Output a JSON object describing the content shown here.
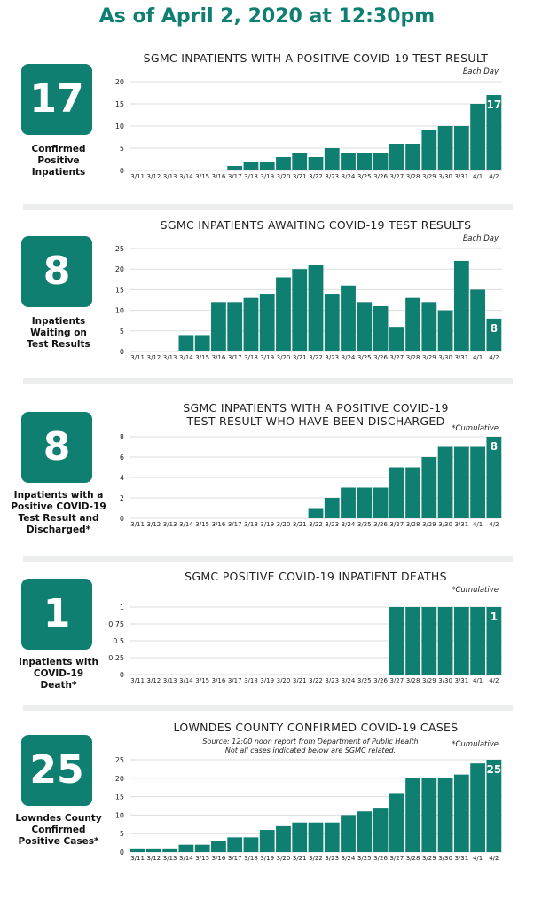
{
  "header": "As of April 2, 2020 at 12:30pm",
  "colors": {
    "accent": "#0f7f71",
    "header_text": "#0f7f71",
    "divider": "#eceeed",
    "grid": "#dddddd"
  },
  "panels": [
    {
      "stat": "17",
      "caption": [
        "Confirmed",
        "Positive",
        "Inpatients"
      ],
      "title": [
        "SGMC INPATIENTS WITH A POSITIVE COVID-19 TEST RESULT"
      ],
      "note": "Each Day",
      "source": []
    },
    {
      "stat": "8",
      "caption": [
        "Inpatients",
        "Waiting on",
        "Test Results"
      ],
      "title": [
        "SGMC INPATIENTS AWAITING COVID-19 TEST RESULTS"
      ],
      "note": "Each Day",
      "source": []
    },
    {
      "stat": "8",
      "caption": [
        "Inpatients with a",
        "Positive COVID-19",
        "Test Result and",
        "Discharged*"
      ],
      "title": [
        "SGMC INPATIENTS WITH A POSITIVE COVID-19",
        "TEST RESULT WHO HAVE BEEN DISCHARGED"
      ],
      "note": "*Cumulative",
      "source": []
    },
    {
      "stat": "1",
      "caption": [
        "Inpatients with",
        "COVID-19",
        "Death*"
      ],
      "title": [
        "SGMC POSITIVE COVID-19 INPATIENT DEATHS"
      ],
      "note": "*Cumulative",
      "source": []
    },
    {
      "stat": "25",
      "caption": [
        "Lowndes County",
        "Confirmed",
        "Positive Cases*"
      ],
      "title": [
        "LOWNDES COUNTY CONFIRMED COVID-19 CASES"
      ],
      "note": "*Cumulative",
      "source": [
        "Source: 12:00 noon report from Department of Public Health",
        "Not all cases indicated below are SGMC related."
      ]
    }
  ],
  "chart_data": [
    {
      "type": "bar",
      "title": "SGMC INPATIENTS WITH A POSITIVE COVID-19 TEST RESULT",
      "categories": [
        "3/11",
        "3/12",
        "3/13",
        "3/14",
        "3/15",
        "3/16",
        "3/17",
        "3/18",
        "3/19",
        "3/20",
        "3/21",
        "3/22",
        "3/23",
        "3/24",
        "3/25",
        "3/26",
        "3/27",
        "3/28",
        "3/29",
        "3/30",
        "3/31",
        "4/1",
        "4/2"
      ],
      "values": [
        0,
        0,
        0,
        0,
        0,
        0,
        1,
        2,
        2,
        3,
        4,
        3,
        5,
        4,
        4,
        4,
        6,
        6,
        9,
        10,
        10,
        15,
        17
      ],
      "yticks": [
        0,
        5,
        10,
        15,
        20
      ],
      "ylim": [
        0,
        20
      ],
      "bar_label": "17",
      "grid": true
    },
    {
      "type": "bar",
      "title": "SGMC INPATIENTS AWAITING COVID-19 TEST RESULTS",
      "categories": [
        "3/11",
        "3/12",
        "3/13",
        "3/14",
        "3/15",
        "3/16",
        "3/17",
        "3/18",
        "3/19",
        "3/20",
        "3/21",
        "3/22",
        "3/23",
        "3/24",
        "3/25",
        "3/26",
        "3/27",
        "3/28",
        "3/29",
        "3/30",
        "3/31",
        "4/1",
        "4/2"
      ],
      "values": [
        0,
        0,
        0,
        4,
        4,
        12,
        12,
        13,
        14,
        18,
        20,
        21,
        14,
        16,
        12,
        11,
        6,
        13,
        12,
        10,
        22,
        15,
        8
      ],
      "yticks": [
        0,
        5,
        10,
        15,
        20,
        25
      ],
      "ylim": [
        0,
        25
      ],
      "bar_label": "8",
      "grid": true
    },
    {
      "type": "bar",
      "title": "SGMC INPATIENTS WITH A POSITIVE COVID-19 TEST RESULT WHO HAVE BEEN DISCHARGED",
      "categories": [
        "3/11",
        "3/12",
        "3/13",
        "3/14",
        "3/15",
        "3/16",
        "3/17",
        "3/18",
        "3/19",
        "3/20",
        "3/21",
        "3/22",
        "3/23",
        "3/24",
        "3/25",
        "3/26",
        "3/27",
        "3/28",
        "3/29",
        "3/30",
        "3/31",
        "4/1",
        "4/2"
      ],
      "values": [
        0,
        0,
        0,
        0,
        0,
        0,
        0,
        0,
        0,
        0,
        0,
        1,
        2,
        3,
        3,
        3,
        5,
        5,
        6,
        7,
        7,
        7,
        8
      ],
      "yticks": [
        0,
        2,
        4,
        6,
        8
      ],
      "ylim": [
        0,
        8
      ],
      "bar_label": "8",
      "grid": true
    },
    {
      "type": "bar",
      "title": "SGMC POSITIVE COVID-19 INPATIENT DEATHS",
      "categories": [
        "3/11",
        "3/12",
        "3/13",
        "3/14",
        "3/15",
        "3/16",
        "3/17",
        "3/18",
        "3/19",
        "3/20",
        "3/21",
        "3/22",
        "3/23",
        "3/24",
        "3/25",
        "3/26",
        "3/27",
        "3/28",
        "3/29",
        "3/30",
        "3/31",
        "4/1",
        "4/2"
      ],
      "values": [
        0,
        0,
        0,
        0,
        0,
        0,
        0,
        0,
        0,
        0,
        0,
        0,
        0,
        0,
        0,
        0,
        1,
        1,
        1,
        1,
        1,
        1,
        1
      ],
      "yticks": [
        "0",
        "0.25",
        "0.5",
        "0.75",
        "1"
      ],
      "ylim": [
        0,
        1
      ],
      "bar_label": "1",
      "grid": true
    },
    {
      "type": "bar",
      "title": "LOWNDES COUNTY CONFIRMED COVID-19 CASES",
      "categories": [
        "3/11",
        "3/12",
        "3/13",
        "3/14",
        "3/15",
        "3/16",
        "3/17",
        "3/18",
        "3/19",
        "3/20",
        "3/21",
        "3/22",
        "3/23",
        "3/24",
        "3/25",
        "3/26",
        "3/27",
        "3/28",
        "3/29",
        "3/30",
        "3/31",
        "4/1",
        "4/2"
      ],
      "values": [
        1,
        1,
        1,
        2,
        2,
        3,
        4,
        4,
        6,
        7,
        8,
        8,
        8,
        10,
        11,
        12,
        16,
        20,
        20,
        20,
        21,
        24,
        25
      ],
      "yticks": [
        0,
        5,
        10,
        15,
        20,
        25
      ],
      "ylim": [
        0,
        25
      ],
      "bar_label": "25",
      "grid": true
    }
  ]
}
